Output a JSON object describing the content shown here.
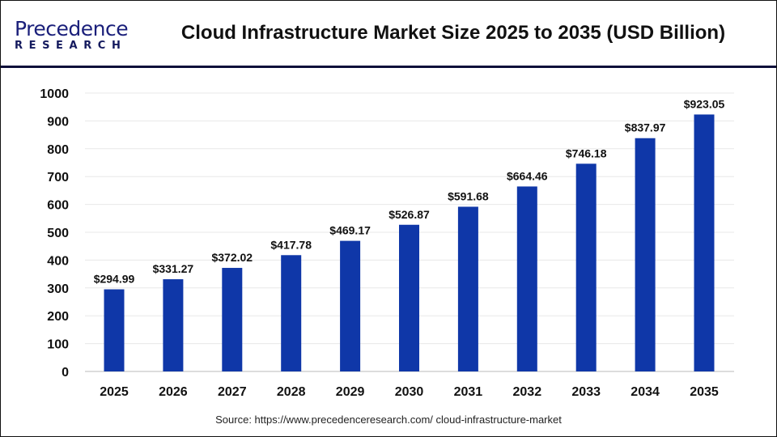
{
  "header": {
    "logo_text_line1": "Precedence",
    "logo_text_line2": "RESEARCH",
    "title": "Cloud Infrastructure Market Size 2025 to 2035 (USD Billion)"
  },
  "source": "Source: https://www.precedenceresearch.com/ cloud-infrastructure-market",
  "chart_data": {
    "type": "bar",
    "title": "Cloud Infrastructure Market Size 2025 to 2035 (USD Billion)",
    "categories": [
      "2025",
      "2026",
      "2027",
      "2028",
      "2029",
      "2030",
      "2031",
      "2032",
      "2033",
      "2034",
      "2035"
    ],
    "values": [
      294.99,
      331.27,
      372.02,
      417.78,
      469.17,
      526.87,
      591.68,
      664.46,
      746.18,
      837.97,
      923.05
    ],
    "data_labels": [
      "$294.99",
      "$331.27",
      "$372.02",
      "$417.78",
      "$469.17",
      "$526.87",
      "$591.68",
      "$664.46",
      "$746.18",
      "$837.97",
      "$923.05"
    ],
    "yticks": [
      "0",
      "100",
      "200",
      "300",
      "400",
      "500",
      "600",
      "700",
      "800",
      "900",
      "1000"
    ],
    "ylim": [
      0,
      1000
    ],
    "grid": true,
    "bar_color": "#0f37a8",
    "xlabel": "",
    "ylabel": ""
  }
}
